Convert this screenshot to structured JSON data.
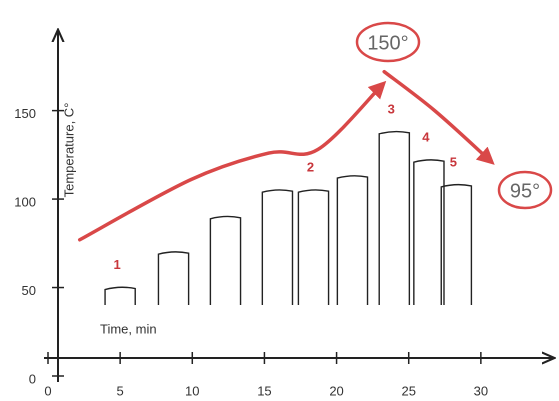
{
  "chart_data": {
    "type": "bar",
    "xlabel": "Time, min",
    "ylabel": "Temperature, C°",
    "x": [
      5,
      8.7,
      12.3,
      15.9,
      18.4,
      21.1,
      24,
      26.4,
      28.3
    ],
    "values": [
      50,
      70,
      90,
      105,
      105,
      113,
      138,
      122,
      108
    ],
    "bar_labels": [
      "1",
      null,
      null,
      null,
      "2",
      null,
      "3",
      "4",
      "5"
    ],
    "color": "#222222",
    "curves": [
      {
        "color": "#d94848",
        "x": [
          2.2,
          9.9,
          15.3,
          18.7,
          23.1
        ],
        "values": [
          77,
          111,
          126,
          128,
          164
        ]
      },
      {
        "color": "#d94848",
        "x": [
          23.3,
          26.8,
          30.6
        ],
        "values": [
          172,
          150,
          122
        ]
      }
    ],
    "annotations": [
      "150°",
      "95°"
    ],
    "xlim": [
      0,
      35
    ],
    "ylim": [
      0,
      195
    ],
    "xticks": [
      0,
      5,
      10,
      15,
      20,
      25,
      30
    ],
    "yticks": [
      0,
      50,
      100,
      150
    ]
  }
}
